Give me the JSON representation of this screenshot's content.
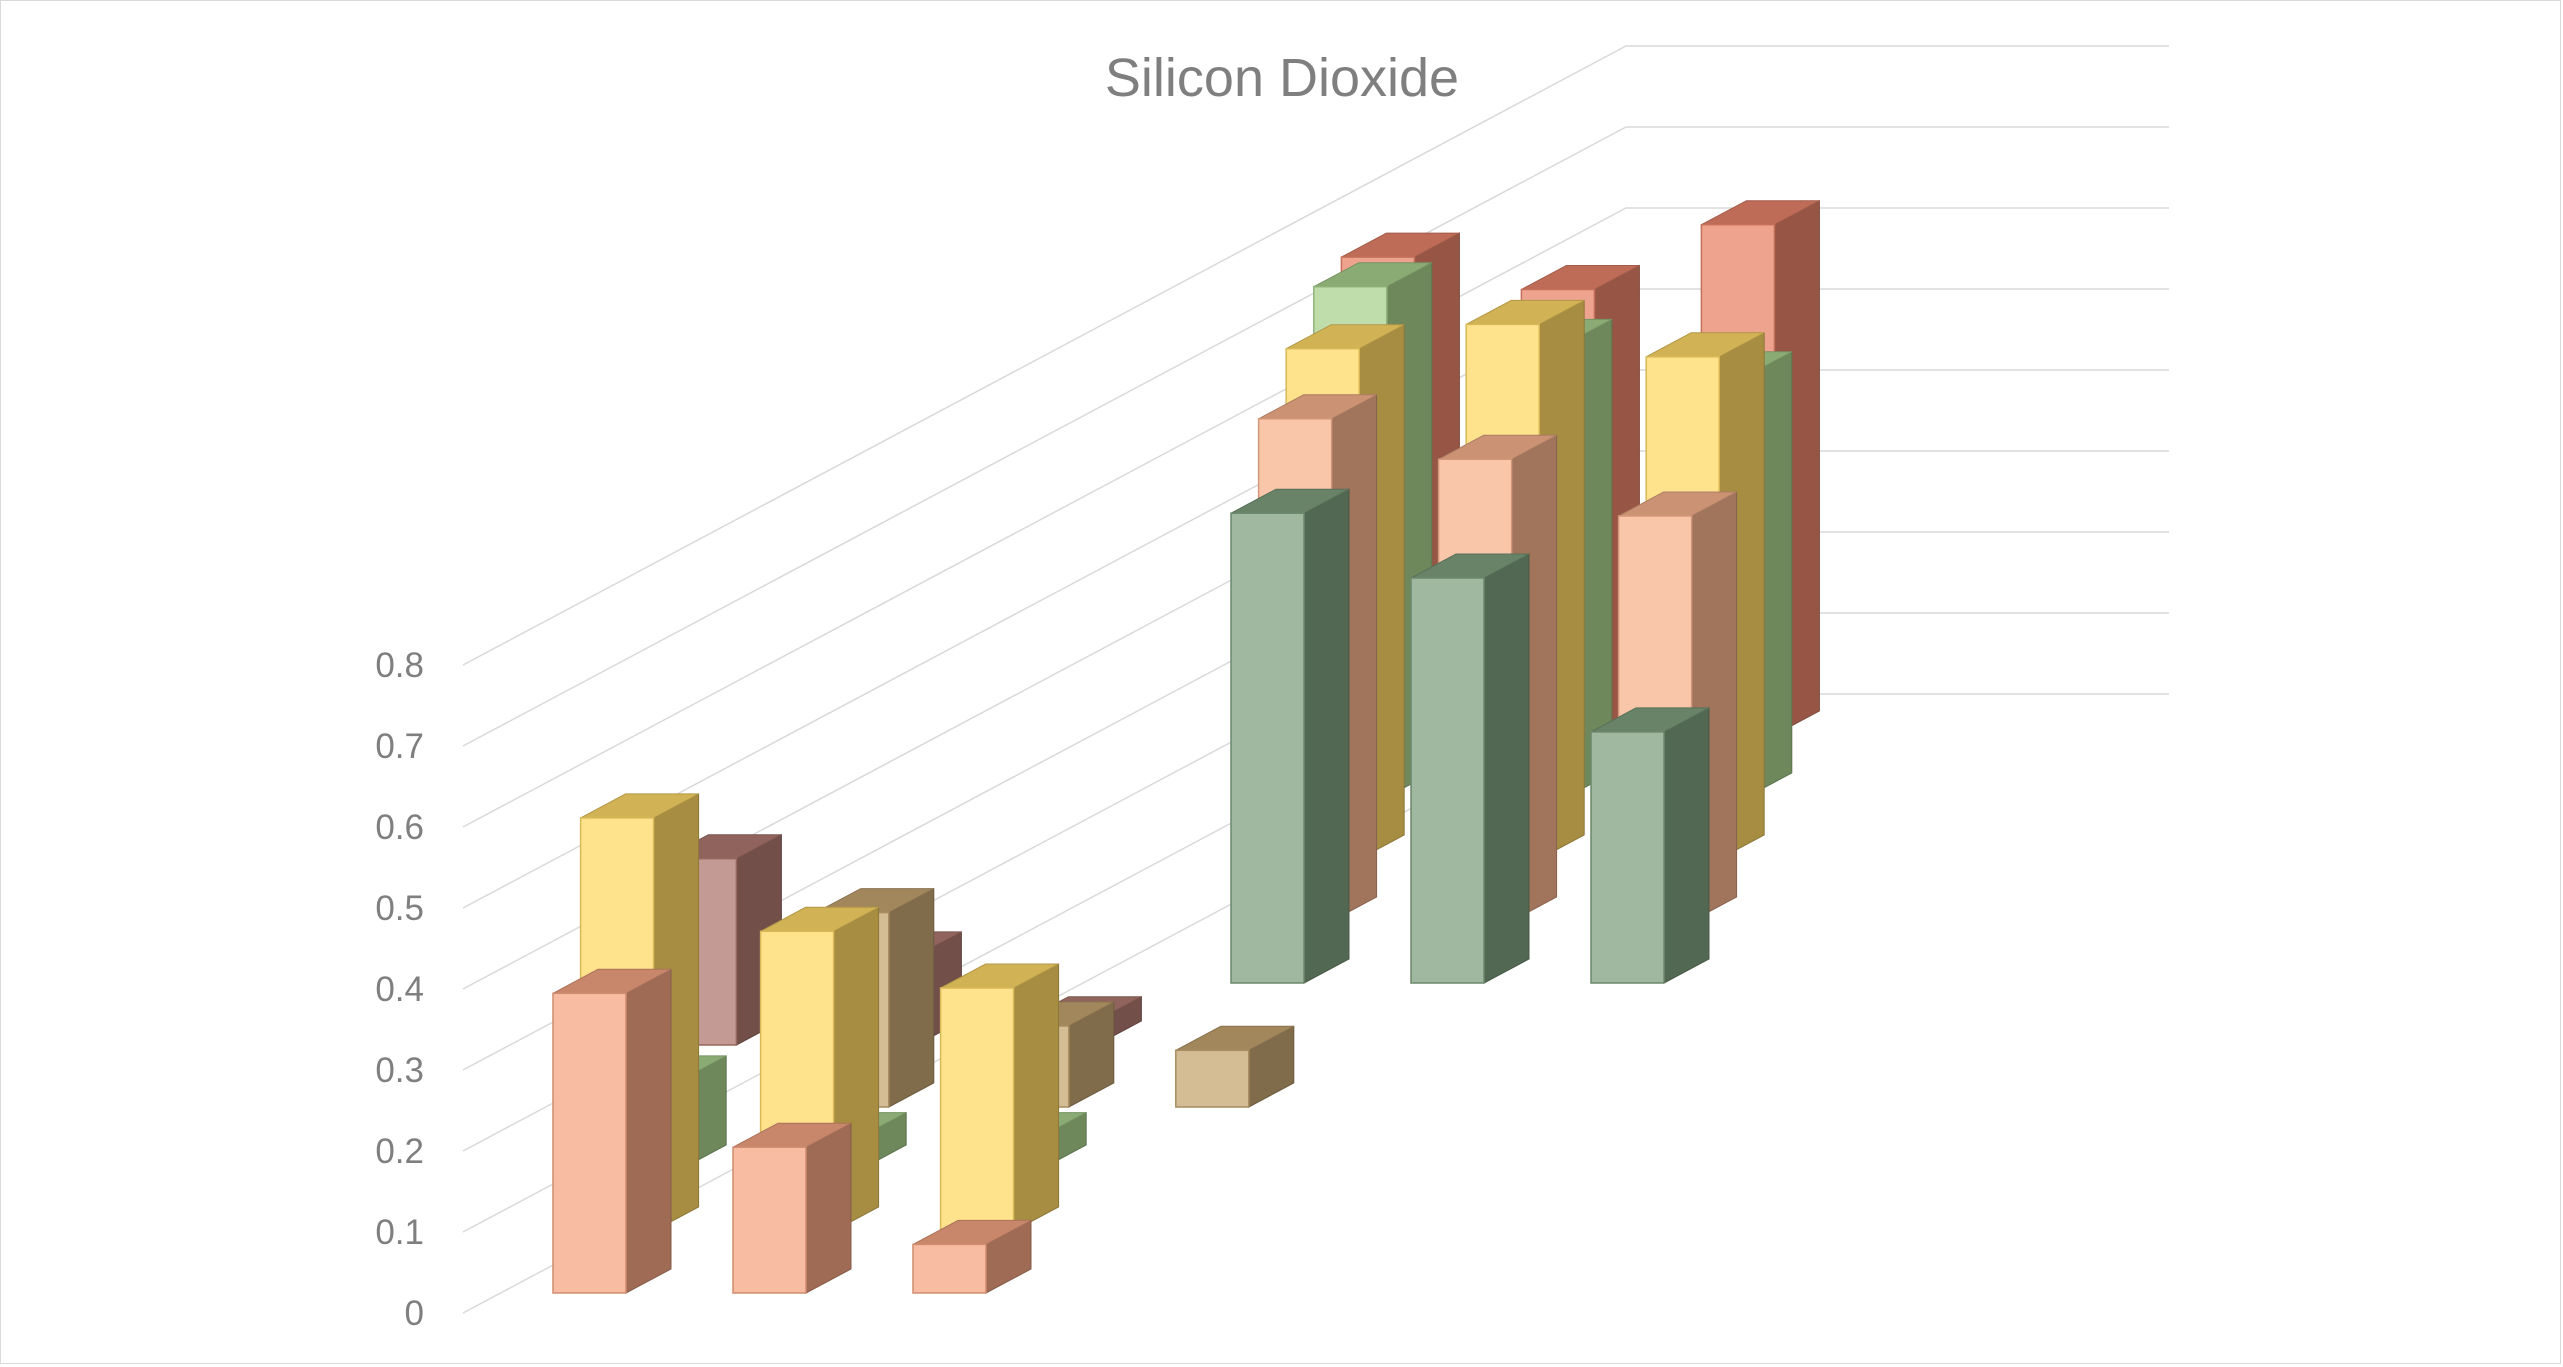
{
  "chart_data": {
    "type": "bar",
    "subtype": "3d-column",
    "title": "Silicon Dioxide",
    "xlabel": "",
    "ylabel": "",
    "ylim": [
      0,
      0.8
    ],
    "yticks": [
      "0",
      "0.1",
      "0.2",
      "0.3",
      "0.4",
      "0.5",
      "0.6",
      "0.7",
      "0.8"
    ],
    "grid": true,
    "legend": "none",
    "categories": [
      "",
      "",
      "",
      "",
      "",
      "",
      "",
      "",
      ""
    ],
    "series": [
      {
        "color": "#F4A582",
        "values": [
          0.37,
          0.18,
          0.06,
          null,
          null,
          null,
          null,
          null,
          null
        ]
      },
      {
        "color": "#FFD966",
        "values": [
          0.51,
          0.37,
          0.3,
          null,
          null,
          null,
          null,
          null,
          null
        ]
      },
      {
        "color": "#A9D18E",
        "values": [
          0.11,
          0.04,
          0.04,
          null,
          null,
          null,
          null,
          null,
          null
        ]
      },
      {
        "color": "#C5A572",
        "values": [
          null,
          0.24,
          0.1,
          0.07,
          null,
          null,
          null,
          null,
          null
        ]
      },
      {
        "color": "#B07A70",
        "values": [
          0.23,
          0.11,
          0.03,
          null,
          null,
          null,
          null,
          null,
          null
        ]
      },
      {
        "color": "#7FA07F",
        "values": [
          null,
          null,
          null,
          0.58,
          0.5,
          0.31,
          null,
          null,
          null
        ]
      },
      {
        "color": "#F8B38E",
        "values": [
          null,
          null,
          null,
          0.62,
          0.57,
          0.5,
          null,
          null,
          null
        ]
      },
      {
        "color": "#FFD966",
        "values": [
          null,
          null,
          null,
          0.63,
          0.66,
          0.62,
          null,
          null,
          null
        ]
      },
      {
        "color": "#A9D18E",
        "values": [
          null,
          null,
          null,
          0.63,
          0.56,
          0.52,
          null,
          null,
          null
        ]
      },
      {
        "color": "#E8846A",
        "values": [
          null,
          null,
          null,
          0.59,
          0.55,
          0.63,
          null,
          null,
          null
        ]
      }
    ]
  }
}
